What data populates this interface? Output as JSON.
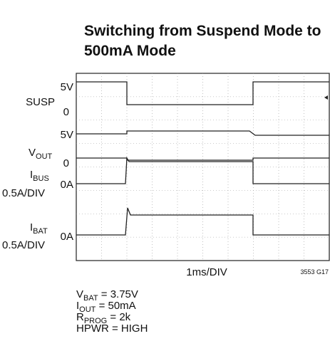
{
  "header": {
    "title_lines": [
      "Switching from Suspend Mode to",
      "500mA Mode"
    ]
  },
  "channels": [
    {
      "name": "SUSP",
      "levels": [
        "5V",
        "0"
      ]
    },
    {
      "name": {
        "main": "V",
        "sub": "OUT"
      },
      "levels": [
        "5V",
        "0"
      ]
    },
    {
      "name": {
        "main": "I",
        "sub": "BUS"
      },
      "scale": "0.5A/DIV",
      "levels": [
        "0A"
      ]
    },
    {
      "name": {
        "main": "I",
        "sub": "BAT"
      },
      "scale": "0.5A/DIV",
      "levels": [
        "0A"
      ]
    }
  ],
  "timebase": "1ms/DIV",
  "figure_id": "3553 G17",
  "conditions": [
    {
      "main": "V",
      "sub": "BAT",
      "rest": " = 3.75V"
    },
    {
      "main": "I",
      "sub": "OUT",
      "rest": " = 50mA"
    },
    {
      "main": "R",
      "sub": "PROG",
      "rest": " = 2k"
    },
    {
      "main": "HPWR = HIGH"
    }
  ]
}
